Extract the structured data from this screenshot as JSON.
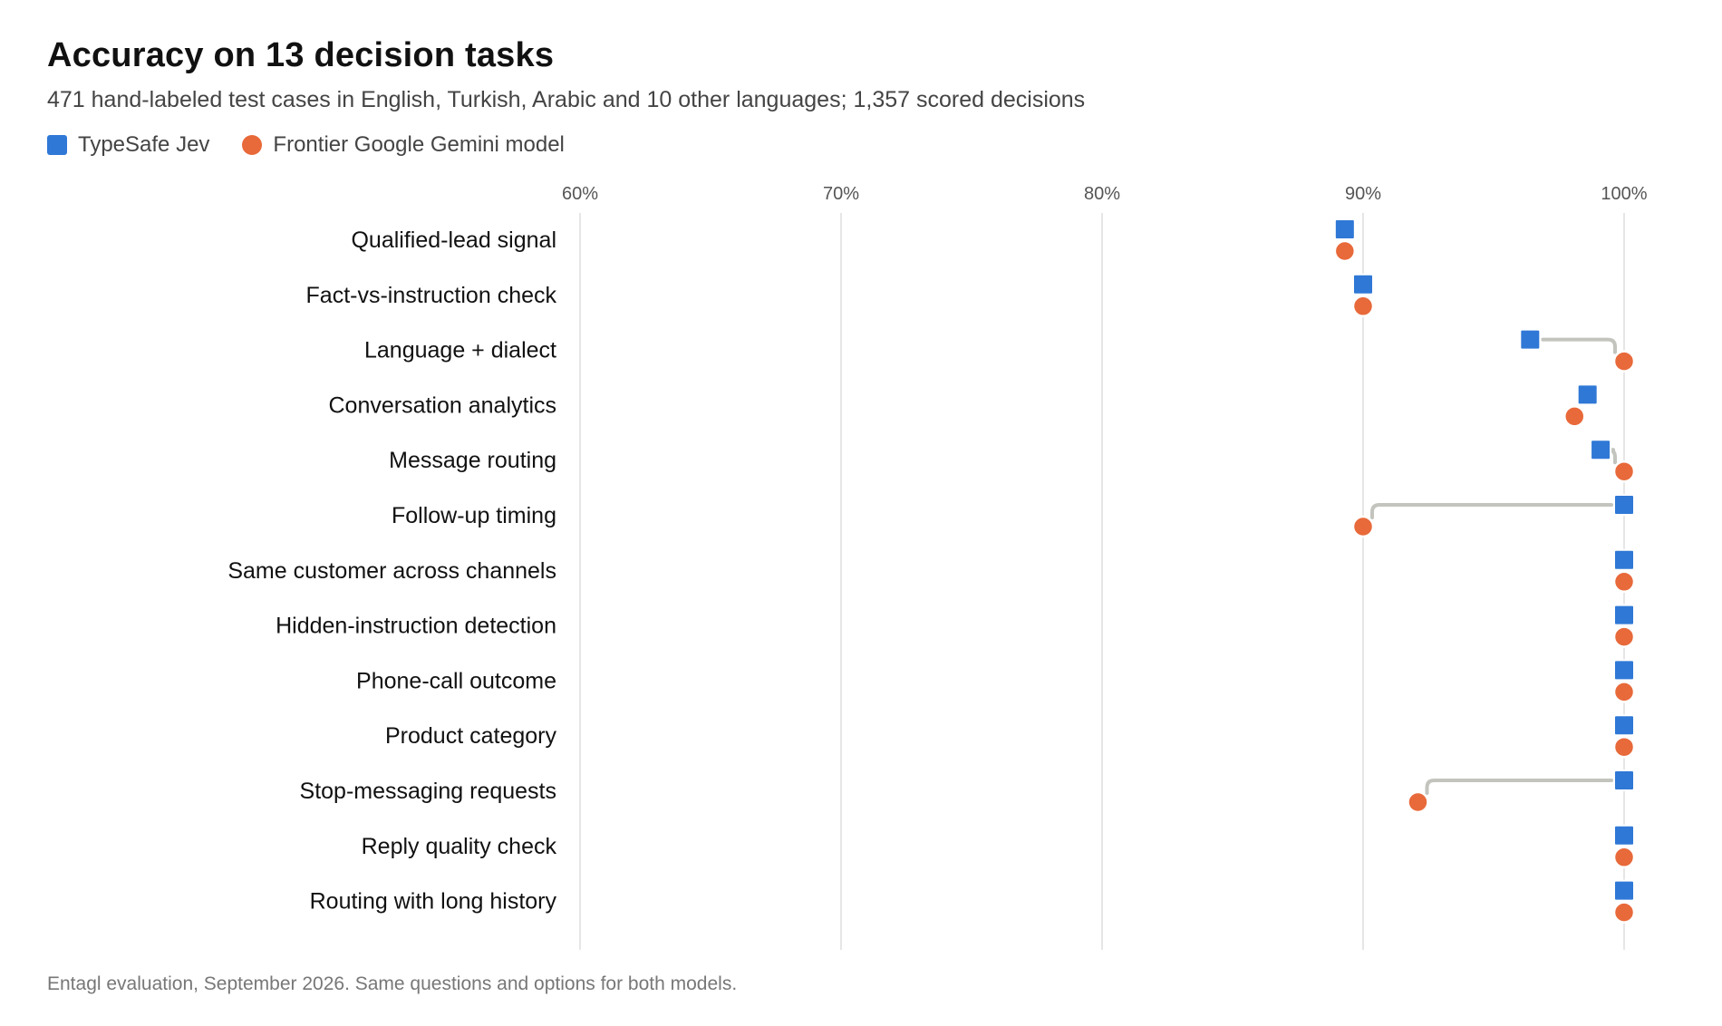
{
  "title": "Accuracy on 13 decision tasks",
  "subtitle": "471 hand-labeled test cases in English, Turkish, Arabic and 10 other languages; 1,357 scored decisions",
  "footer": "Entagl evaluation, September 2026. Same questions and options for both models.",
  "chart_data": {
    "type": "scatter",
    "subtype": "dumbbell",
    "xlim": [
      60,
      100
    ],
    "xticks": [
      "60%",
      "70%",
      "80%",
      "90%",
      "100%"
    ],
    "xtick_values": [
      60,
      70,
      80,
      90,
      100
    ],
    "grid": true,
    "legend_position": "top-left",
    "categories": [
      "Qualified-lead signal",
      "Fact-vs-instruction check",
      "Language + dialect",
      "Conversation analytics",
      "Message routing",
      "Follow-up timing",
      "Same customer across channels",
      "Hidden-instruction detection",
      "Phone-call outcome",
      "Product category",
      "Stop-messaging requests",
      "Reply quality check",
      "Routing with long history"
    ],
    "series": [
      {
        "name": "TypeSafe Jev",
        "marker": "square",
        "color": "#2f78d6",
        "values": [
          89.3,
          90.0,
          96.4,
          98.6,
          99.1,
          100,
          100,
          100,
          100,
          100,
          100,
          100,
          100
        ]
      },
      {
        "name": "Frontier Google Gemini model",
        "marker": "circle",
        "color": "#e8693a",
        "values": [
          89.3,
          90.0,
          100,
          98.1,
          100,
          90.0,
          100,
          100,
          100,
          100,
          92.1,
          100,
          100
        ]
      }
    ],
    "connector_color": "#c4c4be"
  }
}
